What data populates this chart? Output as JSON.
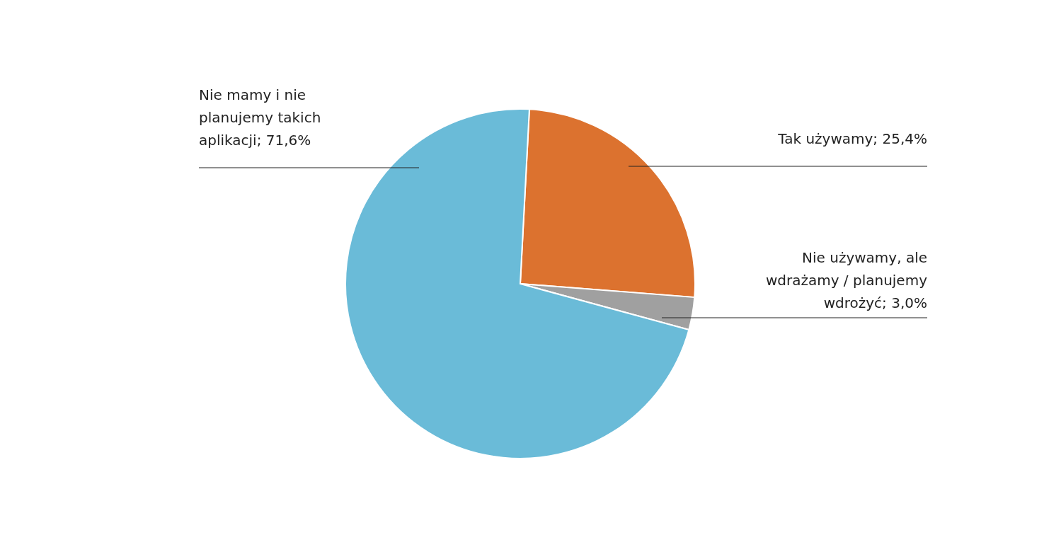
{
  "chart_data": {
    "type": "pie",
    "categories": [
      "Tak używamy",
      "Nie używamy, ale wdrażamy / planujemy wdrożyć",
      "Nie mamy i nie planujemy takich aplikacji"
    ],
    "values": [
      25.4,
      3.0,
      71.6
    ],
    "colors": [
      "#dc722f",
      "#a0a0a0",
      "#6abbd8"
    ],
    "value_labels": [
      "25,4%",
      "3,0%",
      "71,6%"
    ]
  }
}
